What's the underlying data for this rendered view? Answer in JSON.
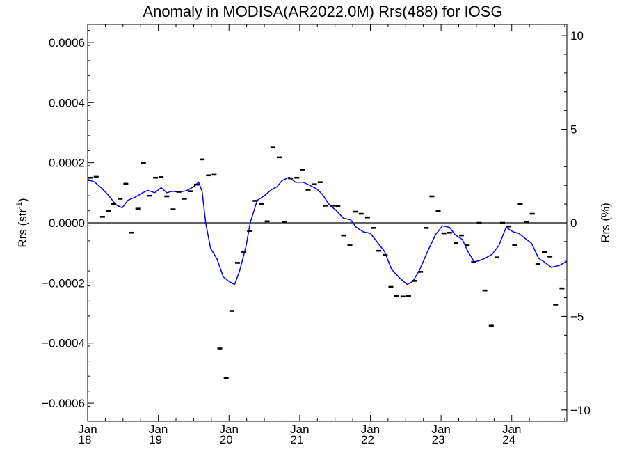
{
  "chart_data": {
    "type": "scatter",
    "title": "Anomaly in MODISA(AR2022.0M) Rrs(488) for IOSG",
    "ylabel_left": "Rrs (str",
    "ylabel_left_sup": "-1",
    "ylabel_left_end": ")",
    "ylabel_right": "Rrs (%)",
    "xlim": [
      2018.0,
      2024.78
    ],
    "ylim_left": [
      -0.00066,
      0.00066
    ],
    "ylim_right": [
      -10.6,
      10.6
    ],
    "x_ticks": [
      {
        "value": 2018,
        "month": "Jan",
        "year": "18"
      },
      {
        "value": 2019,
        "month": "Jan",
        "year": "19"
      },
      {
        "value": 2020,
        "month": "Jan",
        "year": "20"
      },
      {
        "value": 2021,
        "month": "Jan",
        "year": "21"
      },
      {
        "value": 2022,
        "month": "Jan",
        "year": "22"
      },
      {
        "value": 2023,
        "month": "Jan",
        "year": "23"
      },
      {
        "value": 2024,
        "month": "Jan",
        "year": "24"
      }
    ],
    "y_ticks_left": [
      {
        "value": 0.0006,
        "label": "0.0006"
      },
      {
        "value": 0.0004,
        "label": "0.0004"
      },
      {
        "value": 0.0002,
        "label": "0.0002"
      },
      {
        "value": 0.0,
        "label": "0.0000"
      },
      {
        "value": -0.0002,
        "label": "−0.0002"
      },
      {
        "value": -0.0004,
        "label": "−0.0004"
      },
      {
        "value": -0.0006,
        "label": "−0.0006"
      }
    ],
    "y_ticks_right": [
      {
        "value": 10,
        "label": "10"
      },
      {
        "value": 5,
        "label": "5"
      },
      {
        "value": 0,
        "label": "0"
      },
      {
        "value": -5,
        "label": "−5"
      },
      {
        "value": -10,
        "label": "−10"
      }
    ],
    "zero_line": true,
    "colors": {
      "markers": "#000000",
      "smooth_line": "#0000ff",
      "axes": "#000000"
    },
    "series": [
      {
        "kind": "monthly_anomaly",
        "x": [
          2018.04,
          2018.12,
          2018.21,
          2018.29,
          2018.37,
          2018.46,
          2018.54,
          2018.62,
          2018.71,
          2018.79,
          2018.87,
          2018.96,
          2019.04,
          2019.12,
          2019.21,
          2019.29,
          2019.37,
          2019.46,
          2019.54,
          2019.62,
          2019.71,
          2019.79,
          2019.87,
          2019.96,
          2020.04,
          2020.12,
          2020.21,
          2020.29,
          2020.37,
          2020.46,
          2020.54,
          2020.62,
          2020.71,
          2020.79,
          2020.87,
          2020.96,
          2021.04,
          2021.12,
          2021.21,
          2021.29,
          2021.37,
          2021.46,
          2021.54,
          2021.62,
          2021.71,
          2021.79,
          2021.87,
          2021.96,
          2022.04,
          2022.12,
          2022.21,
          2022.29,
          2022.37,
          2022.46,
          2022.54,
          2022.62,
          2022.71,
          2022.79,
          2022.87,
          2022.96,
          2023.04,
          2023.12,
          2023.21,
          2023.29,
          2023.37,
          2023.46,
          2023.54,
          2023.62,
          2023.71,
          2023.79,
          2023.87,
          2023.96,
          2024.04,
          2024.12,
          2024.21,
          2024.29,
          2024.37,
          2024.46,
          2024.54,
          2024.62,
          2024.71
        ],
        "y": [
          0.00015,
          0.000153,
          2e-05,
          4e-05,
          6.2e-05,
          8e-05,
          0.00013,
          -3.3e-05,
          4.7e-05,
          0.0002,
          9e-05,
          0.00015,
          0.000152,
          8.8e-05,
          4.5e-05,
          0.000103,
          8e-05,
          0.000105,
          0.000127,
          0.000211,
          0.000158,
          0.00016,
          -0.000418,
          -0.000517,
          -0.000293,
          -0.000133,
          -9.7e-05,
          -2.7e-05,
          7.3e-05,
          6.3e-05,
          5e-06,
          0.000251,
          0.000218,
          3e-06,
          0.000148,
          0.00015,
          0.000177,
          0.00011,
          0.000128,
          0.000135,
          5.7e-05,
          5.7e-05,
          5.5e-05,
          -4.2e-05,
          -7.5e-05,
          3.7e-05,
          3e-05,
          1.8e-05,
          -1.7e-05,
          -9.3e-05,
          -0.000107,
          -0.000213,
          -0.000243,
          -0.000245,
          -0.000243,
          -0.000193,
          -0.000163,
          -1.7e-05,
          8.8e-05,
          4e-05,
          -3.5e-05,
          -3.3e-05,
          -6.8e-05,
          -4.2e-05,
          -7.5e-05,
          -0.00013,
          0.0,
          -0.000225,
          -0.000342,
          -0.000115,
          0.0,
          -1.2e-05,
          -7.5e-05,
          6.3e-05,
          3e-06,
          3e-05,
          -0.000137,
          -9.7e-05,
          -0.000112,
          -0.000272,
          -0.000218
        ]
      },
      {
        "kind": "smoothed",
        "x": [
          2018.0,
          2018.1,
          2018.2,
          2018.3,
          2018.4,
          2018.49,
          2018.57,
          2018.67,
          2018.78,
          2018.85,
          2018.95,
          2019.04,
          2019.12,
          2019.2,
          2019.3,
          2019.4,
          2019.5,
          2019.57,
          2019.62,
          2019.67,
          2019.74,
          2019.83,
          2019.92,
          2020.0,
          2020.08,
          2020.15,
          2020.24,
          2020.3,
          2020.4,
          2020.5,
          2020.6,
          2020.68,
          2020.75,
          2020.85,
          2020.94,
          2021.05,
          2021.14,
          2021.24,
          2021.32,
          2021.42,
          2021.52,
          2021.62,
          2021.72,
          2021.8,
          2021.9,
          2022.0,
          2022.1,
          2022.2,
          2022.3,
          2022.42,
          2022.52,
          2022.6,
          2022.7,
          2022.8,
          2022.92,
          2023.02,
          2023.12,
          2023.2,
          2023.3,
          2023.38,
          2023.47,
          2023.55,
          2023.62,
          2023.72,
          2023.82,
          2023.92,
          2024.02,
          2024.1,
          2024.18,
          2024.28,
          2024.38,
          2024.46,
          2024.56,
          2024.67,
          2024.78
        ],
        "y": [
          0.000145,
          0.000135,
          0.000115,
          9e-05,
          6e-05,
          5e-05,
          7.5e-05,
          8.5e-05,
          0.0001,
          0.000108,
          0.0001,
          0.000117,
          0.0001,
          0.000105,
          0.000102,
          0.000107,
          0.00012,
          0.000135,
          0.000105,
          0.0,
          -8.5e-05,
          -0.00012,
          -0.00018,
          -0.000195,
          -0.000205,
          -0.00016,
          -8e-05,
          0.0,
          7.5e-05,
          9e-05,
          0.00011,
          0.00012,
          0.00014,
          0.000152,
          0.000135,
          0.000135,
          0.000125,
          0.000113,
          9.5e-05,
          6e-05,
          4e-05,
          1.5e-05,
          1e-05,
          -1.5e-05,
          -3e-05,
          -3.5e-05,
          -6.5e-05,
          -9.5e-05,
          -0.000155,
          -0.000185,
          -0.000205,
          -0.000195,
          -0.000155,
          -0.0001,
          -4e-05,
          -1e-05,
          -1.5e-05,
          -4e-05,
          -5.5e-05,
          -9.5e-05,
          -0.00013,
          -0.000125,
          -0.000118,
          -0.000105,
          -7.5e-05,
          -1.5e-05,
          -3e-05,
          -3.5e-05,
          -5e-05,
          -6.8e-05,
          -0.000118,
          -0.00013,
          -0.000148,
          -0.000142,
          -0.000128
        ]
      }
    ]
  }
}
